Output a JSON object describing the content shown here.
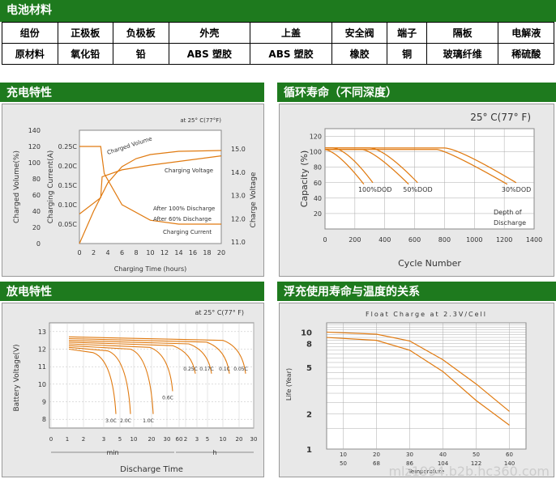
{
  "header": {
    "title": "电池材料"
  },
  "materials": {
    "row1": [
      "组份",
      "正极板",
      "负极板",
      "外壳",
      "上盖",
      "安全阀",
      "端子",
      "隔板",
      "电解液"
    ],
    "row2": [
      "原材料",
      "氧化铅",
      "铅",
      "ABS 塑胶",
      "ABS 塑胶",
      "橡胶",
      "铜",
      "玻璃纤维",
      "稀硫酸"
    ]
  },
  "sections": {
    "charge": "充电特性",
    "cycle": "循环寿命（不同深度）",
    "discharge": "放电特性",
    "float": "浮充使用寿命与温度的关系"
  },
  "watermark": "mlz1994.b2b.hc360.com",
  "chart_data": [
    {
      "type": "line",
      "name": "charge",
      "note": "at 25° C(77°F)",
      "xlabel": "Charging Time (hours)",
      "x_ticks": [
        "0",
        "2",
        "4",
        "6",
        "8",
        "10",
        "12",
        "14",
        "16",
        "18",
        "20"
      ],
      "left_ticks_volume": [
        "0",
        "20",
        "40",
        "60",
        "80",
        "100",
        "120",
        "140"
      ],
      "ylabel_volume": "Charged Volume(%)",
      "left_ticks_current": [
        "0.05C",
        "0.10C",
        "0.15C",
        "0.20C",
        "0.25C"
      ],
      "ylabel_current": "Charging Current(A)",
      "right_ticks": [
        "11.0",
        "12.0",
        "13.0",
        "14.0",
        "15.0"
      ],
      "ylabel_voltage": "Charge Voltage",
      "labels": [
        "Charged Volume",
        "Charging Voltage",
        "Charging Current",
        "After 100% Discharge",
        "After 60% Discharge"
      ],
      "volume": [
        [
          0,
          0
        ],
        [
          2,
          40
        ],
        [
          4,
          75
        ],
        [
          6,
          95
        ],
        [
          8,
          105
        ],
        [
          10,
          110
        ],
        [
          14,
          114
        ],
        [
          20,
          115
        ]
      ],
      "voltage": [
        [
          0,
          12.2
        ],
        [
          3,
          12.9
        ],
        [
          3.2,
          13.8
        ],
        [
          6,
          14.1
        ],
        [
          10,
          14.3
        ],
        [
          20,
          14.7
        ]
      ],
      "current": [
        [
          0,
          0.25
        ],
        [
          3,
          0.25
        ],
        [
          3.5,
          0.18
        ],
        [
          6,
          0.1
        ],
        [
          10,
          0.06
        ],
        [
          14,
          0.05
        ],
        [
          20,
          0.05
        ]
      ]
    },
    {
      "type": "line",
      "name": "cycle",
      "note": "25° C(77° F)",
      "xlabel": "Cycle Number",
      "ylabel": "Capacity (%)",
      "x_ticks": [
        "0",
        "200",
        "400",
        "600",
        "800",
        "1000",
        "1200",
        "1400"
      ],
      "y_ticks": [
        "20",
        "40",
        "60",
        "80",
        "100",
        "120"
      ],
      "series": [
        {
          "name": "100%DOD",
          "end": 320
        },
        {
          "name": "50%DOD",
          "end": 620
        },
        {
          "name": "30%DOD",
          "end": 1280
        }
      ],
      "extra": [
        "Depth of",
        "Discharge"
      ]
    },
    {
      "type": "line",
      "name": "discharge",
      "note": "at 25° C(77° F)",
      "xlabel": "Discharge Time",
      "ylabel": "Battery Voltage(V)",
      "y_ticks": [
        "8",
        "9",
        "10",
        "11",
        "12",
        "13"
      ],
      "x_ticks_min": [
        "0",
        "1",
        "2",
        "3",
        "5",
        "10",
        "20",
        "30",
        "60"
      ],
      "x_ticks_h": [
        "2",
        "3",
        "5",
        "10",
        "20",
        "30"
      ],
      "unit_min": "min",
      "unit_h": "h",
      "series": [
        "3.0C",
        "2.0C",
        "1.0C",
        "0.6C",
        "0.25C",
        "0.17C",
        "0.1C",
        "0.05C"
      ]
    },
    {
      "type": "line",
      "name": "float",
      "note": "Float Charge at 2.3V/Cell",
      "ylabel": "Life (Year)",
      "y_ticks": [
        "1",
        "2",
        "5",
        "8",
        "10"
      ],
      "x_ticks_c": [
        "10",
        "20",
        "30",
        "40",
        "50",
        "60"
      ],
      "x_ticks_f": [
        "50",
        "68",
        "86",
        "104",
        "122",
        "140"
      ],
      "xlabel": "Temperature"
    }
  ]
}
